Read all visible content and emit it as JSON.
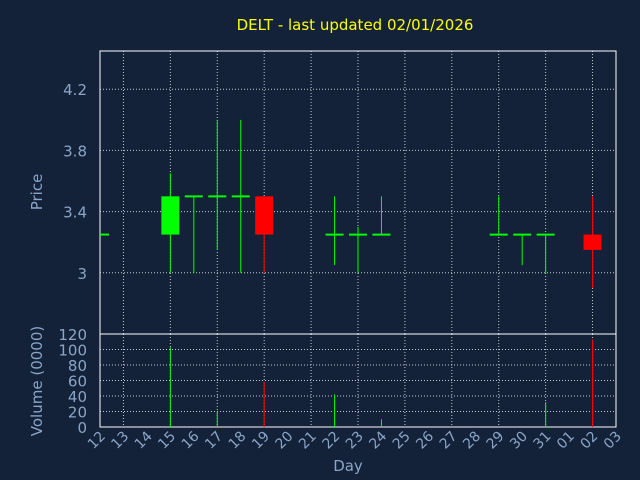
{
  "colors": {
    "background": "#132238",
    "grid": "#ffffff",
    "axis_text": "#8aa5c8",
    "title": "#ffff00",
    "up": "#00ff00",
    "down": "#ff0000"
  },
  "chart_data": {
    "title": "DELT - last updated 02/01/2026",
    "xlabel": "Day",
    "price_panel": {
      "type": "candlestick",
      "ylabel": "Price",
      "ylim": [
        2.6,
        4.45
      ],
      "yticks": [
        3,
        3.4,
        3.8,
        4.2
      ],
      "ytick_labels": [
        "3",
        "3.4",
        "3.8",
        "4.2"
      ],
      "grid": true
    },
    "volume_panel": {
      "type": "bar",
      "ylabel": "Volume (0000)",
      "ylim": [
        0,
        120
      ],
      "yticks": [
        0,
        20,
        40,
        60,
        80,
        100,
        120
      ],
      "ytick_labels": [
        "0",
        "20",
        "40",
        "60",
        "80",
        "100",
        "120"
      ],
      "grid": true
    },
    "x_tick_labels": [
      "12",
      "13",
      "14",
      "15",
      "16",
      "17",
      "18",
      "19",
      "20",
      "21",
      "22",
      "23",
      "24",
      "25",
      "26",
      "27",
      "28",
      "29",
      "30",
      "31",
      "01",
      "02",
      "03"
    ],
    "candles": [
      {
        "day": "12",
        "open": 3.25,
        "high": 3.25,
        "low": 3.25,
        "close": 3.25,
        "volume": 0
      },
      {
        "day": "15",
        "open": 3.25,
        "high": 3.65,
        "low": 3.0,
        "close": 3.5,
        "volume": 103
      },
      {
        "day": "16",
        "open": 3.5,
        "high": 3.5,
        "low": 3.0,
        "close": 3.5,
        "volume": 0
      },
      {
        "day": "17",
        "open": 3.5,
        "high": 4.0,
        "low": 3.15,
        "close": 3.5,
        "volume": 20
      },
      {
        "day": "18",
        "open": 3.5,
        "high": 4.0,
        "low": 3.0,
        "close": 3.5,
        "volume": 0
      },
      {
        "day": "19",
        "open": 3.5,
        "high": 3.5,
        "low": 3.0,
        "close": 3.25,
        "volume": 58
      },
      {
        "day": "22",
        "open": 3.25,
        "high": 3.5,
        "low": 3.05,
        "close": 3.25,
        "volume": 42
      },
      {
        "day": "23",
        "open": 3.25,
        "high": 3.3,
        "low": 3.0,
        "close": 3.25,
        "volume": 0
      },
      {
        "day": "24",
        "open": 3.25,
        "high": 3.5,
        "low": 3.25,
        "close": 3.25,
        "volume": 10
      },
      {
        "day": "29",
        "open": 3.25,
        "high": 3.5,
        "low": 3.25,
        "close": 3.25,
        "volume": 0
      },
      {
        "day": "30",
        "open": 3.25,
        "high": 3.25,
        "low": 3.05,
        "close": 3.25,
        "volume": 0
      },
      {
        "day": "31",
        "open": 3.25,
        "high": 3.25,
        "low": 3.0,
        "close": 3.25,
        "volume": 32
      },
      {
        "day": "02",
        "open": 3.25,
        "high": 3.5,
        "low": 2.9,
        "close": 3.15,
        "volume": 113
      }
    ]
  }
}
